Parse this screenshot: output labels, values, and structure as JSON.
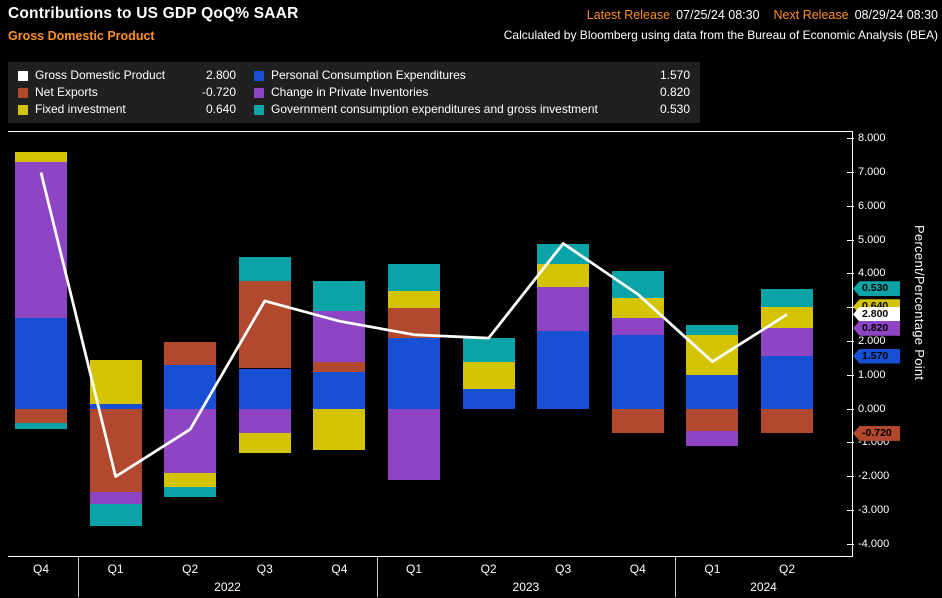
{
  "header": {
    "title": "Contributions to US GDP QoQ% SAAR",
    "subtitle": "Gross Domestic Product",
    "latest_release_label": "Latest Release",
    "latest_release_value": "07/25/24 08:30",
    "next_release_label": "Next Release",
    "next_release_value": "08/29/24 08:30",
    "source_note": "Calculated by Bloomberg using data from the Bureau of Economic Analysis (BEA)"
  },
  "colors": {
    "background": "#000000",
    "panel": "#202020",
    "accent_orange": "#ff9021",
    "gdp_white": "#ffffff",
    "pce_blue": "#1750d2",
    "net_exports_red": "#b2492e",
    "fixed_investment_yellow": "#d4c300",
    "inventories_purple": "#8f44c4",
    "government_teal": "#0aa3a8"
  },
  "legend": {
    "items": [
      {
        "key": "gdp",
        "label": "Gross Domestic Product",
        "value": "2.800",
        "color": "#ffffff"
      },
      {
        "key": "net-exports",
        "label": "Net Exports",
        "value": "-0.720",
        "color": "#b2492e"
      },
      {
        "key": "fixed-investment",
        "label": "Fixed investment",
        "value": "0.640",
        "color": "#d4c300"
      },
      {
        "key": "pce",
        "label": "Personal Consumption Expenditures",
        "value": "1.570",
        "color": "#1750d2"
      },
      {
        "key": "inventories",
        "label": "Change in Private Inventories",
        "value": "0.820",
        "color": "#8f44c4"
      },
      {
        "key": "government",
        "label": "Government consumption expenditures and gross investment",
        "value": "0.530",
        "color": "#0aa3a8"
      }
    ]
  },
  "chart_data": {
    "type": "bar",
    "stacked": true,
    "title": "Contributions to US GDP QoQ% SAAR",
    "ylabel": "Percent/Percentage Point",
    "ylim": [
      -4.35,
      8.2
    ],
    "grid": false,
    "legend_position": "top",
    "categories": [
      "Q4",
      "Q1",
      "Q2",
      "Q3",
      "Q4",
      "Q1",
      "Q2",
      "Q3",
      "Q4",
      "Q1",
      "Q2"
    ],
    "year_groups": [
      {
        "label": "",
        "start": 0,
        "end": 0
      },
      {
        "label": "2022",
        "start": 1,
        "end": 4
      },
      {
        "label": "2023",
        "start": 5,
        "end": 8
      },
      {
        "label": "2024",
        "start": 9,
        "end": 10
      }
    ],
    "series": [
      {
        "key": "pce",
        "name": "Personal Consumption Expenditures",
        "color": "#1750d2",
        "values": [
          2.7,
          0.15,
          1.3,
          1.2,
          1.1,
          2.1,
          0.6,
          2.3,
          2.2,
          1.0,
          1.57
        ]
      },
      {
        "key": "net-exports",
        "name": "Net Exports",
        "color": "#b2492e",
        "values": [
          -0.4,
          -2.45,
          0.7,
          2.6,
          0.3,
          0.9,
          0,
          0,
          -0.7,
          -0.65,
          -0.72
        ]
      },
      {
        "key": "inventories",
        "name": "Change in Private Inventories",
        "color": "#8f44c4",
        "values": [
          4.6,
          -0.35,
          -1.9,
          -0.7,
          1.5,
          -2.1,
          0,
          1.3,
          0.5,
          -0.45,
          0.82
        ]
      },
      {
        "key": "fixed-investment",
        "name": "Fixed investment",
        "color": "#d4c300",
        "values": [
          0.3,
          1.3,
          -0.4,
          -0.6,
          -1.2,
          0.5,
          0.8,
          0.7,
          0.6,
          1.2,
          0.64
        ]
      },
      {
        "key": "government",
        "name": "Government consumption expenditures and gross investment",
        "color": "#0aa3a8",
        "values": [
          -0.2,
          -0.65,
          -0.3,
          0.7,
          0.9,
          0.8,
          0.7,
          0.6,
          0.8,
          0.3,
          0.53
        ]
      }
    ],
    "line_series": {
      "key": "gdp",
      "name": "Gross Domestic Product",
      "color": "#ffffff",
      "values": [
        7.0,
        -2.0,
        -0.6,
        3.2,
        2.6,
        2.2,
        2.1,
        4.9,
        3.4,
        1.4,
        2.8
      ]
    },
    "y_ticks": [
      8,
      7,
      6,
      5,
      4,
      3,
      2,
      1,
      0,
      -1,
      -2,
      -3,
      -4
    ],
    "y_tick_labels": [
      "8.000",
      "7.000",
      "6.000",
      "5.000",
      "4.000",
      "3.000",
      "2.000",
      "1.000",
      "0.000",
      "-1.000",
      "-2.000",
      "-3.000",
      "-4.000"
    ],
    "badges": [
      {
        "key": "government",
        "text": "0.530",
        "color": "#0aa3a8",
        "value": 3.56
      },
      {
        "key": "fixed-investment",
        "text": "0.640",
        "color": "#d4c300",
        "value": 3.03
      },
      {
        "key": "gdp",
        "text": "2.800",
        "color": "#ffffff",
        "value": 2.8
      },
      {
        "key": "inventories",
        "text": "0.820",
        "color": "#8f44c4",
        "value": 2.39
      },
      {
        "key": "pce",
        "text": "1.570",
        "color": "#1750d2",
        "value": 1.57
      },
      {
        "key": "net-exports",
        "text": "-0.720",
        "color": "#b2492e",
        "value": -0.72
      }
    ]
  }
}
